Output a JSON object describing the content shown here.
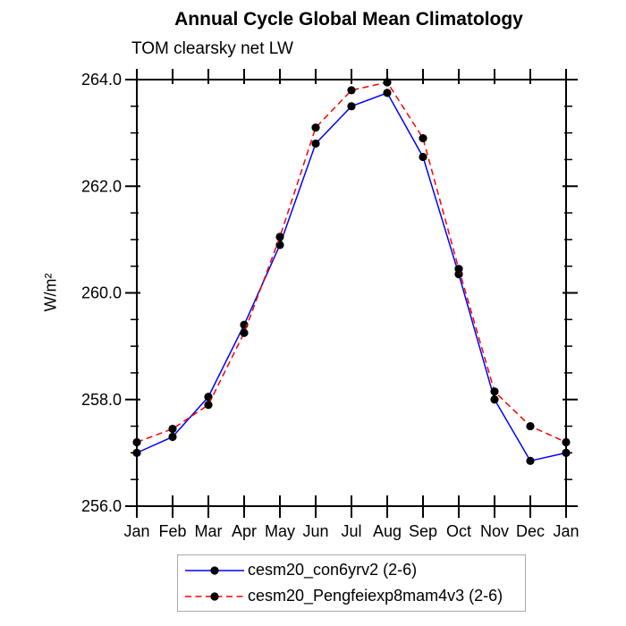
{
  "chart_data": {
    "type": "line",
    "title": "Annual Cycle Global Mean Climatology",
    "subtitle": "TOM clearsky net LW",
    "ylabel": "W/m²",
    "xlabel": "",
    "x_tick_labels": [
      "Jan",
      "Feb",
      "Mar",
      "Apr",
      "May",
      "Jun",
      "Jul",
      "Aug",
      "Sep",
      "Oct",
      "Nov",
      "Dec",
      "Jan"
    ],
    "ylim": [
      256.0,
      264.0
    ],
    "y_major_tick_labels": [
      "256.0",
      "258.0",
      "260.0",
      "262.0",
      "264.0"
    ],
    "y_major_ticks": [
      256.0,
      258.0,
      260.0,
      262.0,
      264.0
    ],
    "y_minor_step": 0.5,
    "grid": false,
    "legend_position": "bottom-center",
    "axis_color": "#000000",
    "marker_color": "#000000",
    "series": [
      {
        "name": "cesm20_con6yrv2 (2-6)",
        "color": "#0000ff",
        "line_style": "solid",
        "marker": "filled-circle",
        "values": [
          257.0,
          257.3,
          258.05,
          259.4,
          260.9,
          262.8,
          263.5,
          263.75,
          262.55,
          260.35,
          258.0,
          256.85,
          257.0
        ]
      },
      {
        "name": "cesm20_Pengfeiexp8mam4v3 (2-6)",
        "color": "#ff0000",
        "line_style": "dashed",
        "marker": "filled-circle",
        "values": [
          257.2,
          257.45,
          257.9,
          259.25,
          261.05,
          263.1,
          263.8,
          263.95,
          262.9,
          260.45,
          258.15,
          257.5,
          257.2
        ]
      }
    ]
  }
}
